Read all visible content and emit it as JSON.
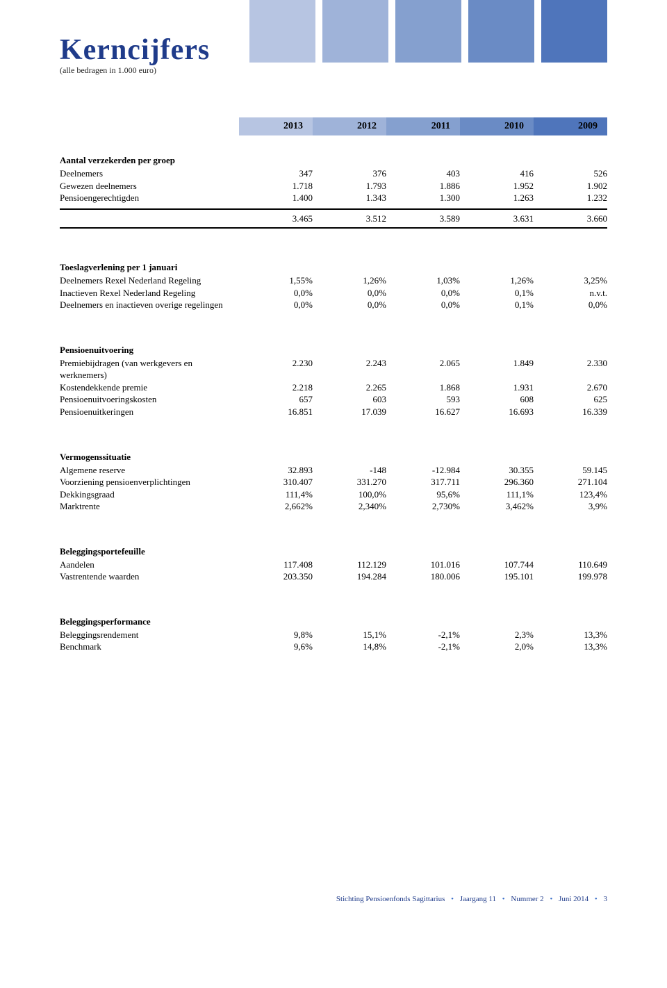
{
  "colors": {
    "title": "#1f3b8a",
    "year_bg": [
      "#b7c5e2",
      "#9fb3d9",
      "#85a0cf",
      "#6a8bc5",
      "#4f75bb"
    ],
    "footer": "#1f3b8a",
    "footer_dot": "#3b6fc9"
  },
  "title": "Kerncijfers",
  "subtitle": "(alle bedragen in 1.000 euro)",
  "years": [
    "2013",
    "2012",
    "2011",
    "2010",
    "2009"
  ],
  "sections": [
    {
      "heading": "Aantal verzekerden per groep",
      "rows": [
        {
          "label": "Deelnemers",
          "v": [
            "347",
            "376",
            "403",
            "416",
            "526"
          ]
        },
        {
          "label": "Gewezen deelnemers",
          "v": [
            "1.718",
            "1.793",
            "1.886",
            "1.952",
            "1.902"
          ]
        },
        {
          "label": "Pensioengerechtigden",
          "v": [
            "1.400",
            "1.343",
            "1.300",
            "1.263",
            "1.232"
          ]
        }
      ],
      "totals": [
        "3.465",
        "3.512",
        "3.589",
        "3.631",
        "3.660"
      ]
    },
    {
      "heading": "Toeslagverlening per 1 januari",
      "rows": [
        {
          "label": "Deelnemers Rexel Nederland Regeling",
          "v": [
            "1,55%",
            "1,26%",
            "1,03%",
            "1,26%",
            "3,25%"
          ]
        },
        {
          "label": "Inactieven Rexel Nederland Regeling",
          "v": [
            "0,0%",
            "0,0%",
            "0,0%",
            "0,1%",
            "n.v.t."
          ]
        },
        {
          "label": "Deelnemers en inactieven overige regelingen",
          "v": [
            "0,0%",
            "0,0%",
            "0,0%",
            "0,1%",
            "0,0%"
          ]
        }
      ]
    },
    {
      "heading": "Pensioenuitvoering",
      "rows": [
        {
          "label": "Premiebijdragen (van werkgevers en werknemers)",
          "v": [
            "2.230",
            "2.243",
            "2.065",
            "1.849",
            "2.330"
          ]
        },
        {
          "label": "Kostendekkende premie",
          "v": [
            "2.218",
            "2.265",
            "1.868",
            "1.931",
            "2.670"
          ]
        },
        {
          "label": "Pensioenuitvoeringskosten",
          "v": [
            "657",
            "603",
            "593",
            "608",
            "625"
          ]
        },
        {
          "label": "Pensioenuitkeringen",
          "v": [
            "16.851",
            "17.039",
            "16.627",
            "16.693",
            "16.339"
          ]
        }
      ]
    },
    {
      "heading": "Vermogenssituatie",
      "rows": [
        {
          "label": "Algemene reserve",
          "v": [
            "32.893",
            "-148",
            "-12.984",
            "30.355",
            "59.145"
          ]
        },
        {
          "label": "Voorziening pensioenverplichtingen",
          "v": [
            "310.407",
            "331.270",
            "317.711",
            "296.360",
            "271.104"
          ]
        },
        {
          "label": "Dekkingsgraad",
          "v": [
            "111,4%",
            "100,0%",
            "95,6%",
            "111,1%",
            "123,4%"
          ]
        },
        {
          "label": "Marktrente",
          "v": [
            "2,662%",
            "2,340%",
            "2,730%",
            "3,462%",
            "3,9%"
          ]
        }
      ]
    },
    {
      "heading": "Beleggingsportefeuille",
      "rows": [
        {
          "label": "Aandelen",
          "v": [
            "117.408",
            "112.129",
            "101.016",
            "107.744",
            "110.649"
          ]
        },
        {
          "label": "Vastrentende waarden",
          "v": [
            "203.350",
            "194.284",
            "180.006",
            "195.101",
            "199.978"
          ]
        }
      ]
    },
    {
      "heading": "Beleggingsperformance",
      "rows": [
        {
          "label": "Beleggingsrendement",
          "v": [
            "9,8%",
            "15,1%",
            "-2,1%",
            "2,3%",
            "13,3%"
          ]
        },
        {
          "label": "Benchmark",
          "v": [
            "9,6%",
            "14,8%",
            "-2,1%",
            "2,0%",
            "13,3%"
          ]
        }
      ]
    }
  ],
  "footer": {
    "org": "Stichting Pensioenfonds Sagittarius",
    "jaargang": "Jaargang 11",
    "nummer": "Nummer 2",
    "date": "Juni 2014",
    "page": "3",
    "dot": "•"
  }
}
